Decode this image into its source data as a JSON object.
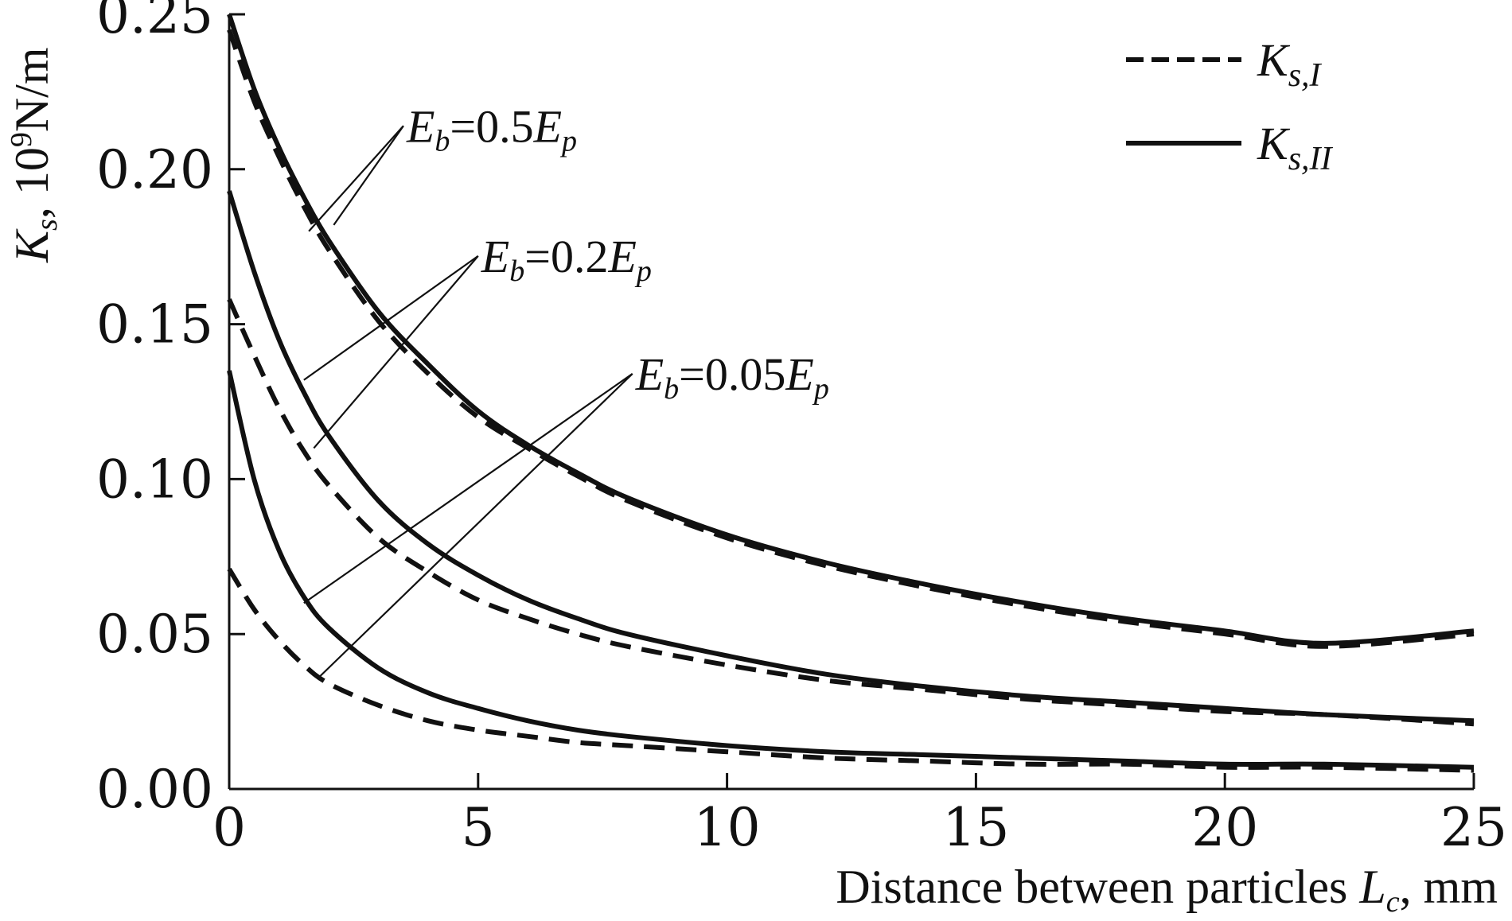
{
  "chart_data": {
    "type": "line",
    "xlabel": {
      "text": "Distance between particles ",
      "symbol": "L",
      "subscript": "c",
      "unit": ", mm"
    },
    "ylabel": {
      "symbol": "K",
      "subscript": "s",
      "unit_prefix": ", 10",
      "unit_exponent": "9",
      "unit": "N/m"
    },
    "xlim": [
      0,
      25
    ],
    "ylim": [
      0,
      0.25
    ],
    "x_ticks": [
      "0",
      "5",
      "10",
      "15",
      "20",
      "25"
    ],
    "y_ticks": [
      "0.00",
      "0.05",
      "0.10",
      "0.15",
      "0.20",
      "0.25"
    ],
    "grid": false,
    "legend_position": "top-right",
    "legend": [
      {
        "symbol": "K",
        "subscript": "s,I",
        "style": "dashed"
      },
      {
        "symbol": "K",
        "subscript": "s,II",
        "style": "solid"
      }
    ],
    "x": [
      0,
      0.5,
      1,
      1.5,
      2,
      3,
      4,
      5,
      6,
      7,
      8,
      10,
      12,
      14,
      16,
      18,
      20,
      22,
      25
    ],
    "series": [
      {
        "group": "0.5",
        "style": "dashed",
        "values": [
          0.245,
          0.222,
          0.204,
          0.188,
          0.174,
          0.151,
          0.134,
          0.12,
          0.11,
          0.101,
          0.093,
          0.081,
          0.072,
          0.065,
          0.059,
          0.054,
          0.05,
          0.046,
          0.05
        ]
      },
      {
        "group": "0.5",
        "style": "solid",
        "values": [
          0.25,
          0.226,
          0.207,
          0.191,
          0.177,
          0.154,
          0.137,
          0.122,
          0.111,
          0.102,
          0.094,
          0.082,
          0.073,
          0.066,
          0.06,
          0.055,
          0.051,
          0.047,
          0.051
        ]
      },
      {
        "group": "0.2",
        "style": "dashed",
        "values": [
          0.158,
          0.14,
          0.123,
          0.109,
          0.098,
          0.081,
          0.07,
          0.061,
          0.055,
          0.05,
          0.046,
          0.04,
          0.035,
          0.032,
          0.029,
          0.027,
          0.025,
          0.024,
          0.021
        ]
      },
      {
        "group": "0.2",
        "style": "solid",
        "values": [
          0.193,
          0.167,
          0.145,
          0.128,
          0.114,
          0.093,
          0.079,
          0.069,
          0.061,
          0.055,
          0.05,
          0.043,
          0.037,
          0.033,
          0.03,
          0.028,
          0.026,
          0.024,
          0.022
        ]
      },
      {
        "group": "0.05",
        "style": "dashed",
        "values": [
          0.071,
          0.058,
          0.048,
          0.04,
          0.034,
          0.027,
          0.022,
          0.019,
          0.017,
          0.015,
          0.014,
          0.012,
          0.01,
          0.009,
          0.008,
          0.008,
          0.007,
          0.007,
          0.006
        ]
      },
      {
        "group": "0.05",
        "style": "solid",
        "values": [
          0.135,
          0.1,
          0.077,
          0.062,
          0.052,
          0.039,
          0.031,
          0.026,
          0.022,
          0.019,
          0.017,
          0.014,
          0.012,
          0.011,
          0.01,
          0.009,
          0.008,
          0.008,
          0.007
        ]
      }
    ],
    "annotations": [
      {
        "id": "0.5",
        "sym": "E",
        "sub": "b",
        "mid": "=0.5",
        "sym2": "E",
        "sub2": "p",
        "text_at": [
          3.5,
          0.214
        ],
        "targets": [
          [
            1.6,
            0.18
          ],
          [
            2.1,
            0.182
          ]
        ]
      },
      {
        "id": "0.2",
        "sym": "E",
        "sub": "b",
        "mid": "=0.2",
        "sym2": "E",
        "sub2": "p",
        "text_at": [
          5.0,
          0.172
        ],
        "targets": [
          [
            1.5,
            0.132
          ],
          [
            1.7,
            0.11
          ]
        ]
      },
      {
        "id": "0.05",
        "sym": "E",
        "sub": "b",
        "mid": "=0.05",
        "sym2": "E",
        "sub2": "p",
        "text_at": [
          8.1,
          0.134
        ],
        "targets": [
          [
            1.5,
            0.06
          ],
          [
            1.8,
            0.036
          ]
        ]
      }
    ]
  }
}
